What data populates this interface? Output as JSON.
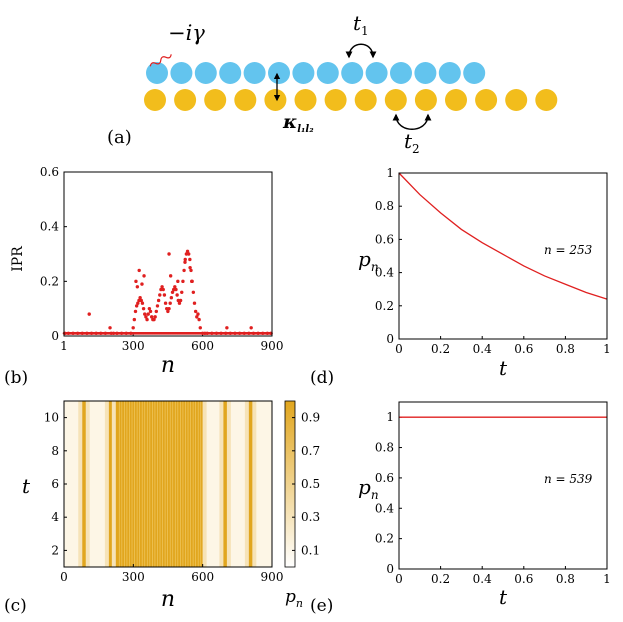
{
  "panel_a": {
    "label": "(a)",
    "gain_label": "−iγ",
    "hop1_label": "t",
    "hop1_sub": "1",
    "hop2_label": "t",
    "hop2_sub": "2",
    "coupling_label": "κ",
    "coupling_sub": "l₁l₂",
    "top_row_color": "#63c4ee",
    "bottom_row_color": "#f2bd1c",
    "sites_per_row": 14
  },
  "chart_data": [
    {
      "id": "b",
      "panel_label": "(b)",
      "type": "scatter",
      "ylabel": "IPR",
      "xlabel": "n",
      "xlim": [
        1,
        900
      ],
      "ylim": [
        0,
        0.6
      ],
      "xticks": [
        "1",
        "300",
        "600",
        "900"
      ],
      "yticks": [
        "0.6",
        "0.4",
        "0.2",
        "0"
      ],
      "color": "#e02020",
      "x": [
        5,
        20,
        40,
        60,
        80,
        100,
        110,
        120,
        140,
        160,
        180,
        200,
        205,
        215,
        230,
        250,
        270,
        290,
        300,
        305,
        310,
        315,
        320,
        325,
        330,
        335,
        340,
        345,
        350,
        355,
        360,
        365,
        370,
        375,
        380,
        385,
        390,
        395,
        400,
        405,
        410,
        415,
        420,
        425,
        430,
        435,
        440,
        445,
        450,
        455,
        460,
        465,
        470,
        475,
        480,
        485,
        490,
        495,
        500,
        505,
        510,
        515,
        520,
        525,
        530,
        535,
        540,
        545,
        550,
        555,
        560,
        565,
        570,
        575,
        580,
        585,
        590,
        600,
        610,
        620,
        640,
        660,
        680,
        700,
        705,
        720,
        740,
        760,
        780,
        800,
        810,
        820,
        840,
        860,
        880,
        895,
        312,
        318,
        326,
        338,
        347,
        455,
        462,
        478,
        493,
        524,
        546,
        553
      ],
      "y": [
        0.01,
        0.01,
        0.01,
        0.01,
        0.01,
        0.01,
        0.08,
        0.01,
        0.01,
        0.01,
        0.01,
        0.03,
        0.01,
        0.01,
        0.01,
        0.01,
        0.01,
        0.01,
        0.03,
        0.06,
        0.09,
        0.11,
        0.12,
        0.13,
        0.14,
        0.13,
        0.12,
        0.1,
        0.08,
        0.07,
        0.06,
        0.08,
        0.1,
        0.09,
        0.07,
        0.06,
        0.06,
        0.07,
        0.09,
        0.11,
        0.13,
        0.15,
        0.17,
        0.18,
        0.17,
        0.15,
        0.12,
        0.1,
        0.09,
        0.1,
        0.12,
        0.14,
        0.16,
        0.17,
        0.18,
        0.17,
        0.15,
        0.13,
        0.12,
        0.13,
        0.16,
        0.2,
        0.24,
        0.28,
        0.3,
        0.31,
        0.3,
        0.28,
        0.24,
        0.2,
        0.16,
        0.12,
        0.09,
        0.07,
        0.08,
        0.06,
        0.03,
        0.01,
        0.01,
        0.01,
        0.01,
        0.01,
        0.01,
        0.01,
        0.03,
        0.01,
        0.01,
        0.01,
        0.01,
        0.01,
        0.03,
        0.01,
        0.01,
        0.01,
        0.01,
        0.01,
        0.2,
        0.18,
        0.24,
        0.19,
        0.22,
        0.3,
        0.22,
        0.17,
        0.2,
        0.27,
        0.25,
        0.2
      ]
    },
    {
      "id": "d",
      "panel_label": "(d)",
      "type": "line",
      "ylabel": "p",
      "ylabel_sub": "n",
      "xlabel": "t",
      "xlim": [
        0,
        1
      ],
      "ylim": [
        0,
        1
      ],
      "xticks": [
        "0",
        "0.2",
        "0.4",
        "0.6",
        "0.8",
        "1"
      ],
      "yticks": [
        "1",
        "0.8",
        "0.6",
        "0.4",
        "0.2",
        "0"
      ],
      "annotation": "n = 253",
      "color": "#e02020",
      "x": [
        0,
        0.1,
        0.2,
        0.3,
        0.4,
        0.5,
        0.6,
        0.7,
        0.8,
        0.9,
        1.0
      ],
      "y": [
        1.0,
        0.87,
        0.76,
        0.66,
        0.58,
        0.51,
        0.44,
        0.38,
        0.33,
        0.28,
        0.24
      ]
    },
    {
      "id": "c",
      "panel_label": "(c)",
      "type": "heatmap",
      "xlabel": "n",
      "ylabel": "t",
      "xlim": [
        1,
        900
      ],
      "ylim": [
        1,
        11
      ],
      "xticks": [
        "0",
        "300",
        "600",
        "900"
      ],
      "yticks": [
        "10",
        "8",
        "6",
        "4",
        "2"
      ],
      "colorbar_ticks": [
        "0.9",
        "0.7",
        "0.5",
        "0.3",
        "0.1"
      ],
      "colorbar_label": "p",
      "colorbar_label_sub": "n",
      "color_low": "#ffffff",
      "color_high": "#e1a61e",
      "bands": [
        [
          80,
          95
        ],
        [
          195,
          210
        ],
        [
          225,
          600
        ],
        [
          690,
          705
        ],
        [
          800,
          815
        ]
      ]
    },
    {
      "id": "e",
      "panel_label": "(e)",
      "type": "line",
      "ylabel": "p",
      "ylabel_sub": "n",
      "xlabel": "t",
      "xlim": [
        0,
        1
      ],
      "ylim": [
        0,
        1.1
      ],
      "xticks": [
        "0",
        "0.2",
        "0.4",
        "0.6",
        "0.8",
        "1"
      ],
      "yticks": [
        "1",
        "0.8",
        "0.6",
        "0.4",
        "0.2",
        "0"
      ],
      "annotation": "n = 539",
      "color": "#e02020",
      "x": [
        0,
        1
      ],
      "y": [
        1,
        1
      ]
    }
  ]
}
